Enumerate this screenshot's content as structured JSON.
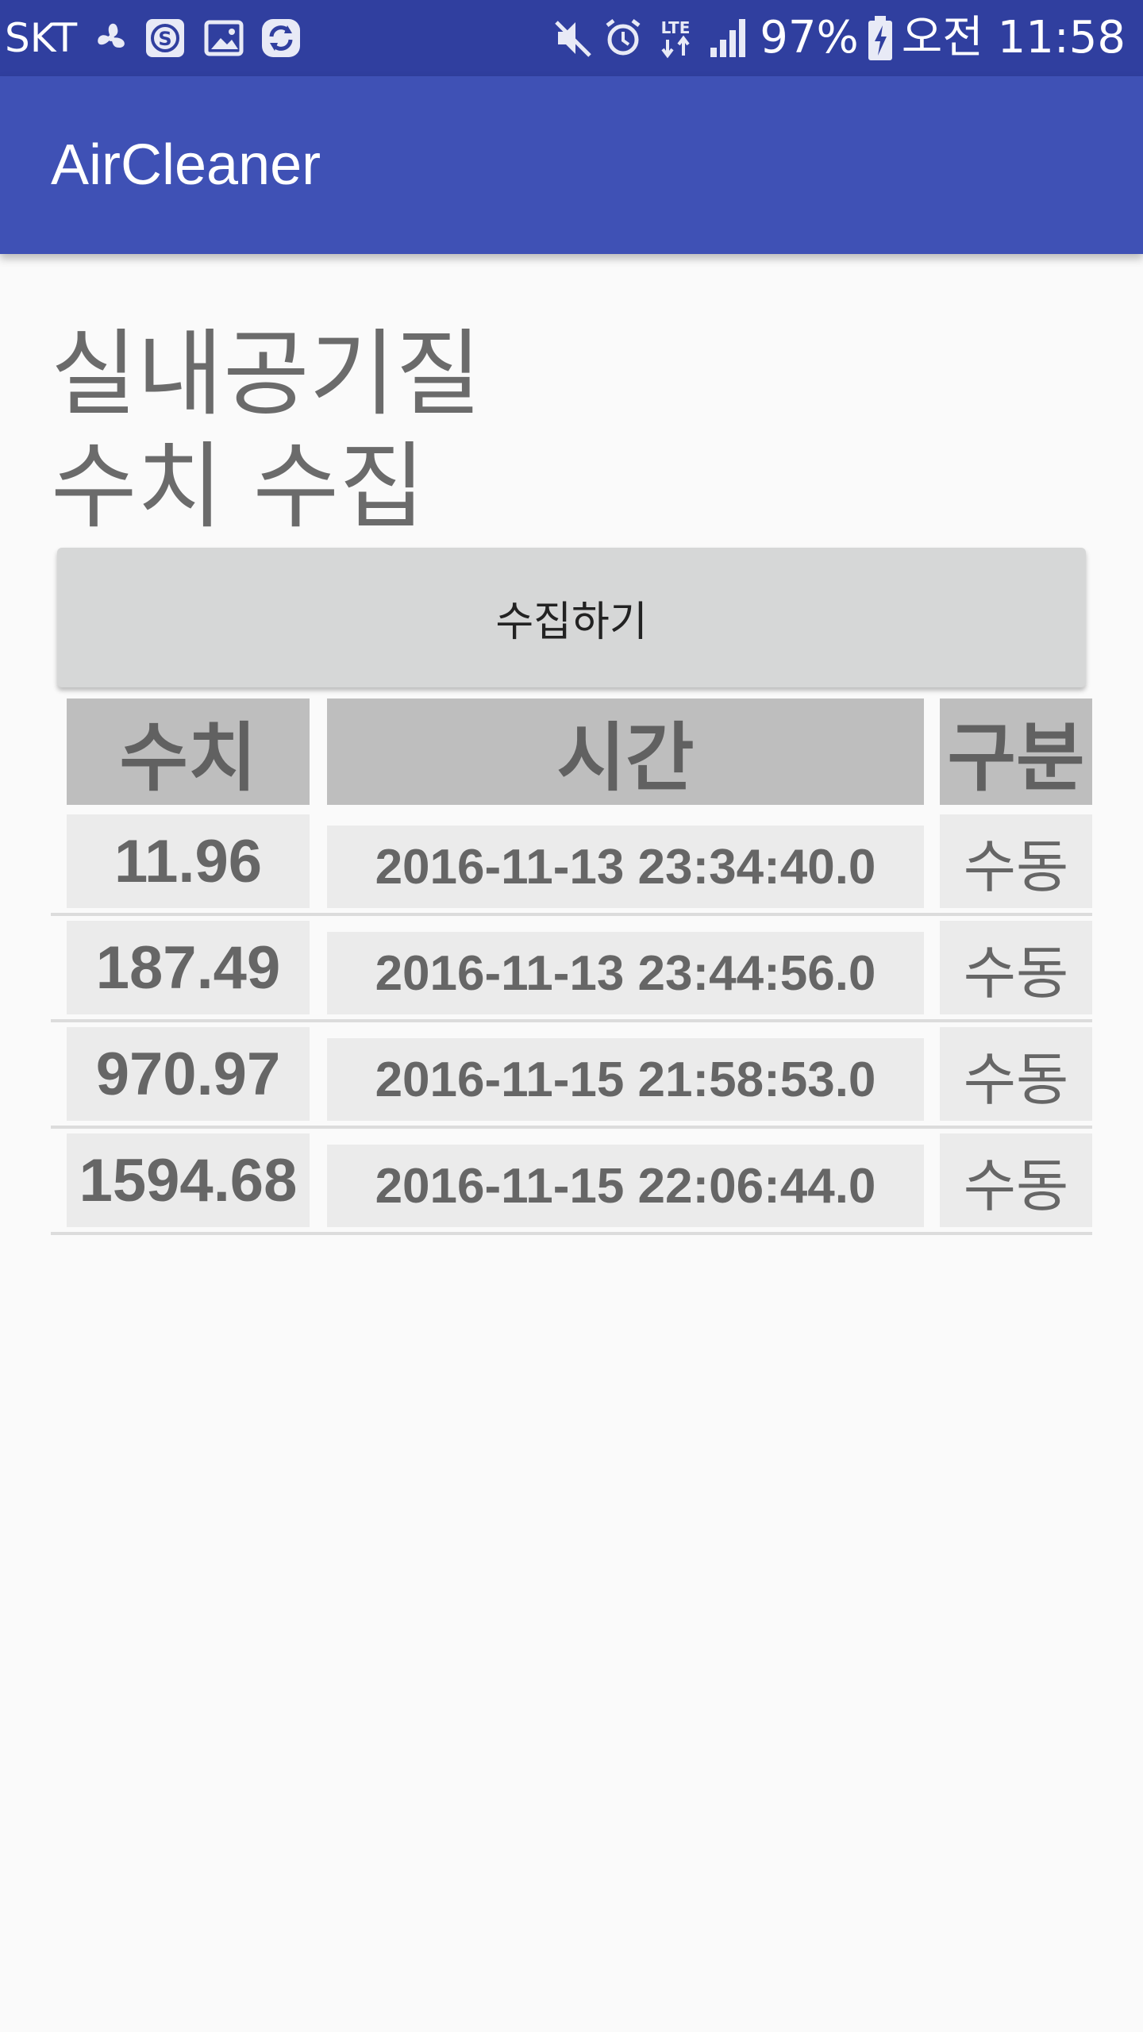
{
  "status_bar": {
    "carrier": "SKT",
    "battery": "97%",
    "clock": "오전 11:58",
    "network": "LTE"
  },
  "app_bar": {
    "title": "AirCleaner"
  },
  "main": {
    "heading": "실내공기질\n수치 수집",
    "collect_button_label": "수집하기"
  },
  "table": {
    "headers": [
      "수치",
      "시간",
      "구분"
    ],
    "rows": [
      {
        "value": "11.96",
        "time": "2016-11-13 23:34:40.0",
        "type": "수동"
      },
      {
        "value": "187.49",
        "time": "2016-11-13 23:44:56.0",
        "type": "수동"
      },
      {
        "value": "970.97",
        "time": "2016-11-15 21:58:53.0",
        "type": "수동"
      },
      {
        "value": "1594.68",
        "time": "2016-11-15 22:06:44.0",
        "type": "수동"
      }
    ]
  },
  "colors": {
    "status_bar": "#303f9f",
    "app_bar": "#3f51b5",
    "header_cell": "#bebebe",
    "data_cell": "#ebebeb"
  }
}
